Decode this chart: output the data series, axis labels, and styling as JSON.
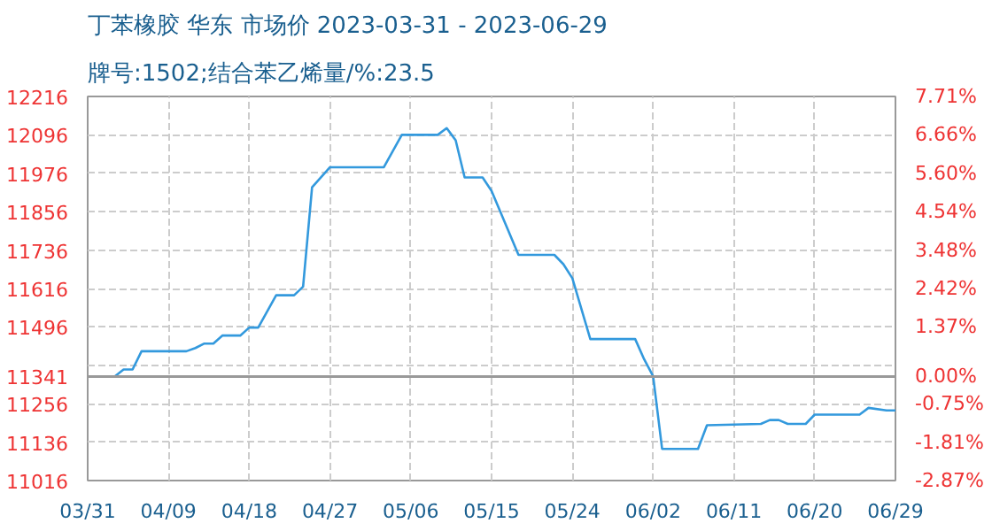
{
  "chart_data": {
    "type": "line",
    "title": "丁苯橡胶 华东 市场价 2023-03-31 - 2023-06-29",
    "subtitle": "牌号:1502;结合苯乙烯量/%:23.5",
    "x": [
      "2023-03-31",
      "2023-04-03",
      "2023-04-04",
      "2023-04-05",
      "2023-04-06",
      "2023-04-11",
      "2023-04-12",
      "2023-04-13",
      "2023-04-14",
      "2023-04-15",
      "2023-04-17",
      "2023-04-18",
      "2023-04-19",
      "2023-04-21",
      "2023-04-23",
      "2023-04-24",
      "2023-04-25",
      "2023-04-27",
      "2023-05-03",
      "2023-05-05",
      "2023-05-09",
      "2023-05-10",
      "2023-05-11",
      "2023-05-12",
      "2023-05-14",
      "2023-05-15",
      "2023-05-18",
      "2023-05-22",
      "2023-05-23",
      "2023-05-24",
      "2023-05-26",
      "2023-05-31",
      "2023-06-01",
      "2023-06-02",
      "2023-06-03",
      "2023-06-07",
      "2023-06-08",
      "2023-06-14",
      "2023-06-15",
      "2023-06-16",
      "2023-06-17",
      "2023-06-19",
      "2023-06-20",
      "2023-06-25",
      "2023-06-26",
      "2023-06-28",
      "2023-06-29"
    ],
    "series": [
      {
        "color": "#3399dd",
        "values": [
          11341,
          11341,
          11363,
          11363,
          11420,
          11420,
          11430,
          11444,
          11444,
          11469,
          11469,
          11494,
          11494,
          11595,
          11595,
          11622,
          11932,
          11995,
          11995,
          12096,
          12096,
          12117,
          12079,
          11963,
          11963,
          11921,
          11721,
          11721,
          11692,
          11648,
          11458,
          11458,
          11395,
          11342,
          11115,
          11115,
          11189,
          11193,
          11205,
          11205,
          11193,
          11193,
          11222,
          11222,
          11243,
          11235,
          11235
        ]
      }
    ],
    "xlim": [
      "2023-03-31",
      "2023-06-29"
    ],
    "xticks": [
      {
        "value": "2023-03-31",
        "label": "03/31"
      },
      {
        "value": "2023-04-09",
        "label": "04/09"
      },
      {
        "value": "2023-04-18",
        "label": "04/18"
      },
      {
        "value": "2023-04-27",
        "label": "04/27"
      },
      {
        "value": "2023-05-06",
        "label": "05/06"
      },
      {
        "value": "2023-05-15",
        "label": "05/15"
      },
      {
        "value": "2023-05-24",
        "label": "05/24"
      },
      {
        "value": "2023-06-02",
        "label": "06/02"
      },
      {
        "value": "2023-06-11",
        "label": "06/11"
      },
      {
        "value": "2023-06-20",
        "label": "06/20"
      },
      {
        "value": "2023-06-29",
        "label": "06/29"
      }
    ],
    "ylim": [
      11016,
      12216
    ],
    "yticks": [
      11016,
      11136,
      11256,
      {
        "value": 11376,
        "label": null
      },
      11341,
      11496,
      11616,
      11736,
      11856,
      11976,
      12096,
      12216
    ],
    "y2lim": [
      -2.87,
      7.71
    ],
    "y2ticks": [
      {
        "value": -2.87,
        "label": "-2.87%"
      },
      {
        "value": -1.81,
        "label": "-1.81%"
      },
      {
        "value": -0.75,
        "label": "-0.75%"
      },
      {
        "value": 0,
        "label": "0.00%"
      },
      {
        "value": 1.37,
        "label": "1.37%"
      },
      {
        "value": 2.42,
        "label": "2.42%"
      },
      {
        "value": 3.48,
        "label": "3.48%"
      },
      {
        "value": 4.54,
        "label": "4.54%"
      },
      {
        "value": 5.6,
        "label": "5.60%"
      },
      {
        "value": 6.66,
        "label": "6.66%"
      },
      {
        "value": 7.71,
        "label": "7.71%"
      }
    ],
    "ref_lines": [
      {
        "axis": "y",
        "value": 11341,
        "color": "#999999"
      }
    ],
    "grid": true
  }
}
